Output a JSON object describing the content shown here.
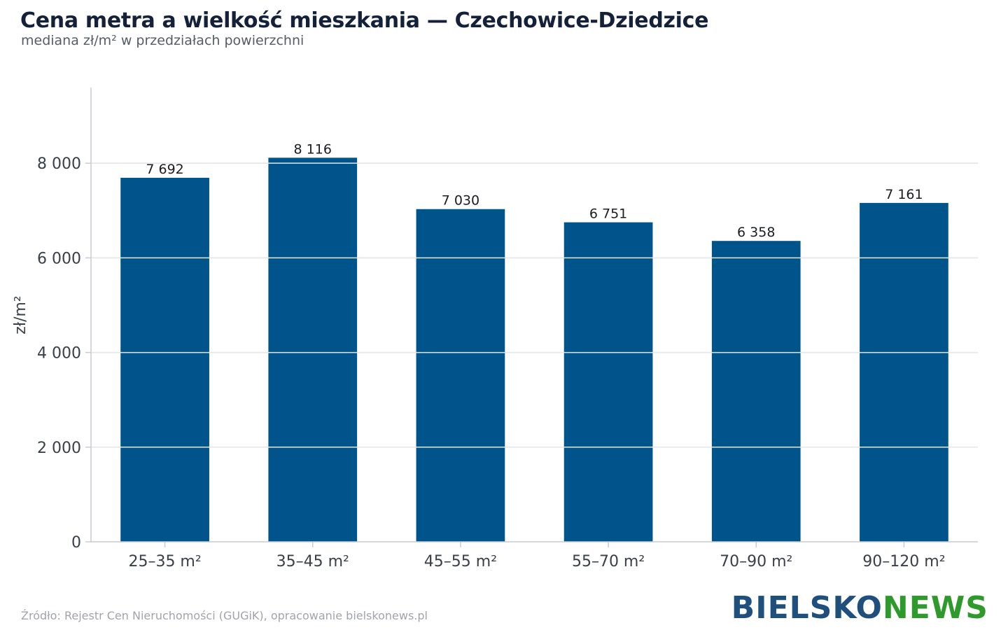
{
  "header": {
    "title": "Cena metra a wielkość mieszkania — Czechowice-Dziedzice",
    "subtitle": "mediana zł/m² w przedziałach powierzchni"
  },
  "footer": {
    "source": "Źródło: Rejestr Cen Nieruchomości (GUGiK), opracowanie bielskonews.pl",
    "logo_part1": "BIELSKO",
    "logo_part2": "NEWS"
  },
  "colors": {
    "bar": "#00548c",
    "grid": "#e4e6ea",
    "axis": "#c8ccd2",
    "text": "#3a4049",
    "logo_blue": "#1e4f7d",
    "logo_green": "#2f9a2c"
  },
  "chart_data": {
    "type": "bar",
    "title": "Cena metra a wielkość mieszkania — Czechowice-Dziedzice",
    "subtitle": "mediana zł/m² w przedziałach powierzchni",
    "xlabel": "",
    "ylabel": "zł/m²",
    "categories": [
      "25–35 m²",
      "35–45 m²",
      "45–55 m²",
      "55–70 m²",
      "70–90 m²",
      "90–120 m²"
    ],
    "values": [
      7692,
      8116,
      7030,
      6751,
      6358,
      7161
    ],
    "value_labels": [
      "7 692",
      "8 116",
      "7 030",
      "6 751",
      "6 358",
      "7 161"
    ],
    "ylim": [
      0,
      9600
    ],
    "yticks": [
      0,
      2000,
      4000,
      6000,
      8000
    ],
    "ytick_labels": [
      "0",
      "2 000",
      "4 000",
      "6 000",
      "8 000"
    ],
    "grid": true,
    "legend": "none"
  }
}
